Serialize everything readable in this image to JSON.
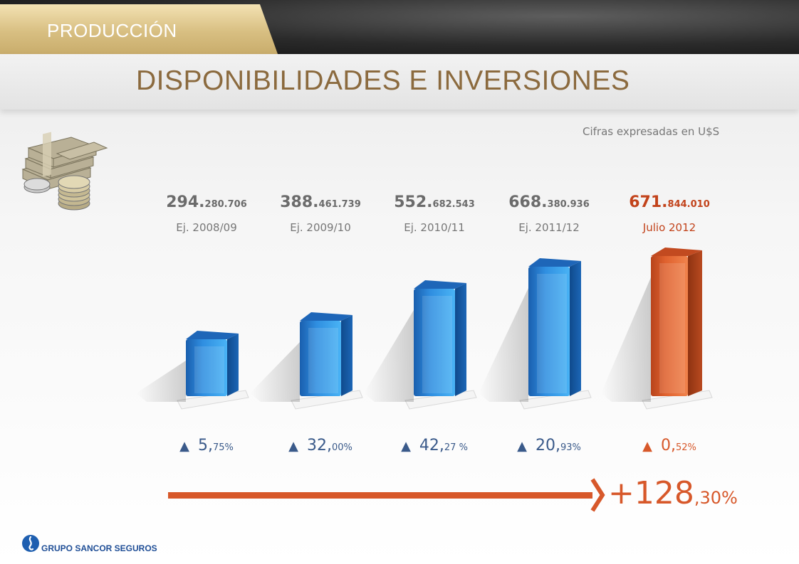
{
  "header": {
    "section": "PRODUCCIÓN",
    "title": "DISPONIBILIDADES E INVERSIONES",
    "note": "Cifras expresadas en U$S"
  },
  "colors": {
    "bar_default": "#2b7fd1",
    "bar_highlight": "#e0622f",
    "text_highlight": "#c2431b",
    "value_default": "#6b6b6b",
    "accent_arrow": "#d7582a"
  },
  "chart_data": {
    "type": "bar",
    "categories": [
      "Ej. 2008/09",
      "Ej. 2009/10",
      "Ej. 2010/11",
      "Ej. 2011/12",
      "Julio 2012"
    ],
    "values": [
      294280706,
      388461739,
      552682543,
      668380936,
      671844010
    ],
    "value_labels": [
      {
        "big": "294.",
        "small": "280.706"
      },
      {
        "big": "388.",
        "small": "461.739"
      },
      {
        "big": "552.",
        "small": "682.543"
      },
      {
        "big": "668.",
        "small": "380.936"
      },
      {
        "big": "671.",
        "small": "844.010"
      }
    ],
    "growth_labels": [
      {
        "big": "5,",
        "small": "75%"
      },
      {
        "big": "32,",
        "small": "00%"
      },
      {
        "big": "42,",
        "small": "27 %"
      },
      {
        "big": "20,",
        "small": "93%"
      },
      {
        "big": "0,",
        "small": "52%"
      }
    ],
    "highlight_index": 4,
    "total_growth": {
      "big": "+128",
      "small": ",30%"
    },
    "title": "",
    "xlabel": "",
    "ylabel": ""
  },
  "footer": {
    "logo_text": "GRUPO SANCOR SEGUROS",
    "logo_icon": "sancor-flame-icon",
    "money_icon": "money-stack-icon"
  }
}
